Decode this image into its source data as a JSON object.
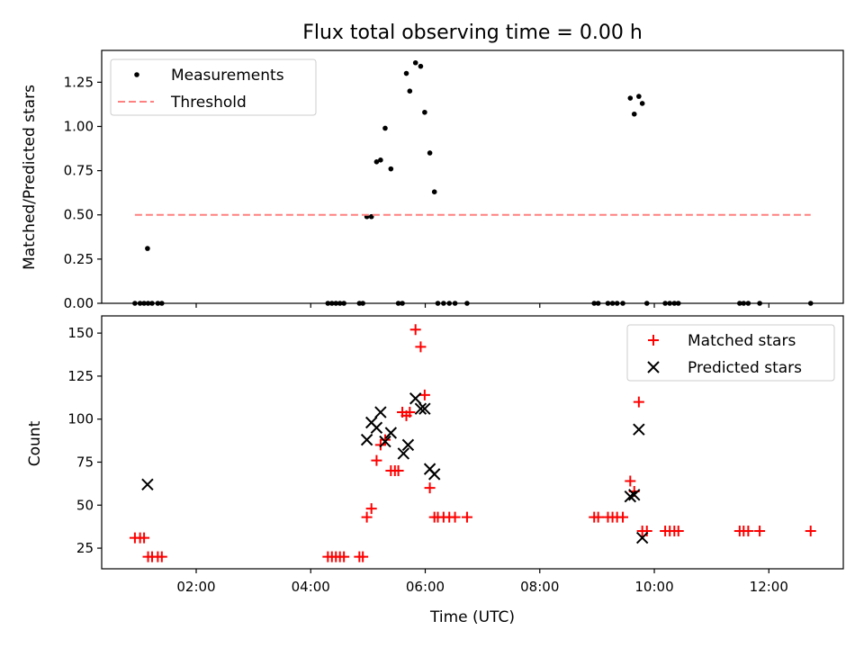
{
  "chart_data": [
    {
      "type": "scatter",
      "title": "Flux total observing time = 0.00 h",
      "ylabel": "Matched/Predicted stars",
      "xlabel": "",
      "xlim": [
        0.35,
        13.3
      ],
      "ylim": [
        0,
        1.43
      ],
      "yticks": [
        0,
        0.25,
        0.5,
        0.75,
        1.0,
        1.25
      ],
      "ytick_labels": [
        "0.00",
        "0.25",
        "0.50",
        "0.75",
        "1.00",
        "1.25"
      ],
      "xticks": [
        2,
        4,
        6,
        8,
        10,
        12
      ],
      "legend": {
        "placement": "top-left",
        "entries": [
          "Measurements",
          "Threshold"
        ]
      },
      "series": [
        {
          "name": "Measurements",
          "marker": "dot",
          "color": "#000000",
          "x": [
            0.93,
            1.02,
            1.09,
            1.16,
            1.23,
            1.33,
            1.4,
            1.15,
            4.3,
            4.37,
            4.44,
            4.51,
            4.58,
            4.85,
            4.91,
            4.98,
            5.06,
            5.15,
            5.22,
            5.3,
            5.4,
            5.53,
            5.6,
            5.67,
            5.73,
            5.83,
            5.92,
            5.99,
            6.08,
            6.16,
            6.22,
            6.32,
            6.42,
            6.52,
            6.73,
            8.95,
            9.02,
            9.19,
            9.27,
            9.35,
            9.45,
            9.58,
            9.65,
            9.73,
            9.79,
            9.87,
            10.19,
            10.27,
            10.35,
            10.42,
            11.49,
            11.56,
            11.64,
            11.84,
            12.73
          ],
          "y": [
            0,
            0,
            0,
            0,
            0,
            0,
            0,
            0.31,
            0,
            0,
            0,
            0,
            0,
            0,
            0,
            0.49,
            0.49,
            0.8,
            0.81,
            0.99,
            0.76,
            0,
            0,
            1.3,
            1.2,
            1.36,
            1.34,
            1.08,
            0.85,
            0.63,
            0,
            0,
            0,
            0,
            0,
            0,
            0,
            0,
            0,
            0,
            0,
            1.16,
            1.07,
            1.17,
            1.13,
            0,
            0,
            0,
            0,
            0,
            0,
            0,
            0,
            0,
            0
          ]
        },
        {
          "name": "Threshold",
          "line": "dashed",
          "color": "#ff8080",
          "x": [
            0.93,
            12.73
          ],
          "y": [
            0.5,
            0.5
          ]
        }
      ]
    },
    {
      "type": "scatter",
      "title": "",
      "xlabel": "Time (UTC)",
      "ylabel": "Count",
      "xlim": [
        0.35,
        13.3
      ],
      "ylim": [
        13,
        160
      ],
      "yticks": [
        25,
        50,
        75,
        100,
        125,
        150
      ],
      "xticks": [
        2,
        4,
        6,
        8,
        10,
        12
      ],
      "xtick_labels": [
        "02:00",
        "04:00",
        "06:00",
        "08:00",
        "10:00",
        "12:00"
      ],
      "legend": {
        "placement": "top-right",
        "entries": [
          "Matched stars",
          "Predicted stars"
        ]
      },
      "series": [
        {
          "name": "Matched stars",
          "marker": "plus",
          "color": "#ff0000",
          "x": [
            0.93,
            1.02,
            1.09,
            1.16,
            1.23,
            1.33,
            1.4,
            4.3,
            4.37,
            4.44,
            4.51,
            4.58,
            4.85,
            4.91,
            4.98,
            5.06,
            5.15,
            5.22,
            5.3,
            5.4,
            5.47,
            5.53,
            5.6,
            5.67,
            5.73,
            5.83,
            5.92,
            5.99,
            6.08,
            6.16,
            6.22,
            6.32,
            6.42,
            6.52,
            6.73,
            8.95,
            9.02,
            9.19,
            9.27,
            9.35,
            9.45,
            9.58,
            9.65,
            9.73,
            9.79,
            9.87,
            10.19,
            10.27,
            10.35,
            10.42,
            11.49,
            11.56,
            11.64,
            11.84,
            12.73
          ],
          "y": [
            31,
            31,
            31,
            20,
            20,
            20,
            20,
            20,
            20,
            20,
            20,
            20,
            20,
            20,
            43,
            48,
            76,
            85,
            88,
            70,
            70,
            70,
            104,
            102,
            104,
            152,
            142,
            114,
            60,
            43,
            43,
            43,
            43,
            43,
            43,
            43,
            43,
            43,
            43,
            43,
            43,
            64,
            58,
            110,
            35,
            35,
            35,
            35,
            35,
            35,
            35,
            35,
            35,
            35,
            35
          ]
        },
        {
          "name": "Predicted stars",
          "marker": "x",
          "color": "#000000",
          "x": [
            1.15,
            4.98,
            5.06,
            5.15,
            5.22,
            5.3,
            5.4,
            5.62,
            5.7,
            5.83,
            5.92,
            5.99,
            6.08,
            6.16,
            9.58,
            9.65,
            9.73,
            9.79
          ],
          "y": [
            62,
            88,
            98,
            95,
            104,
            87,
            92,
            80,
            85,
            112,
            106,
            106,
            71,
            68,
            55,
            56,
            94,
            31
          ]
        }
      ]
    }
  ]
}
